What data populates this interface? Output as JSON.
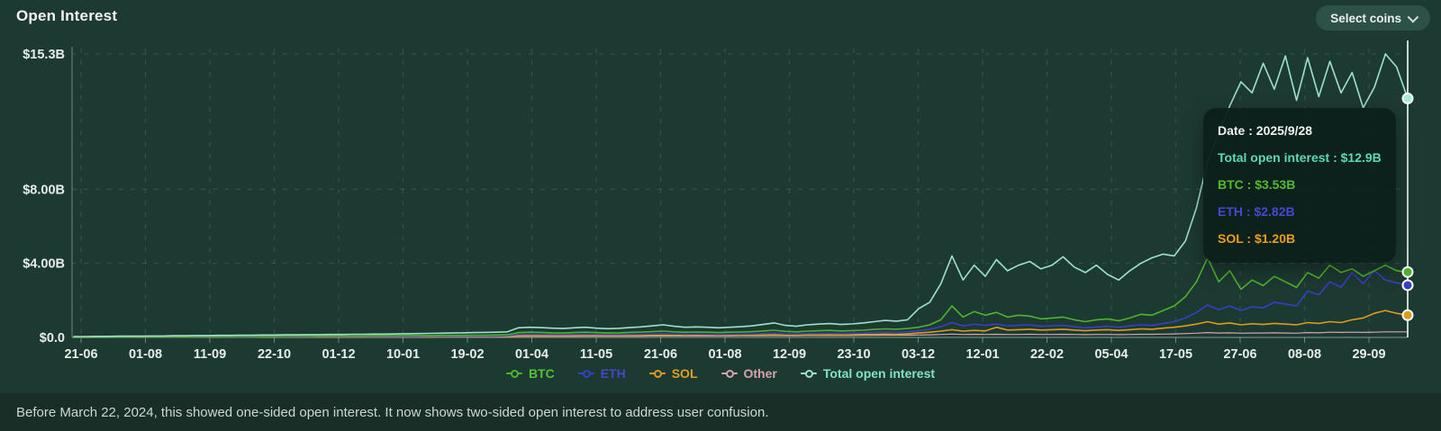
{
  "header": {
    "title": "Open Interest",
    "select_coins_label": "Select coins"
  },
  "tooltip": {
    "separator": " : ",
    "rows": [
      {
        "label": "Date",
        "value": "2025/9/28",
        "color": "#eef2ee"
      },
      {
        "label": "Total open interest",
        "value": "$12.9B",
        "color": "#5ed9b2"
      },
      {
        "label": "BTC",
        "value": "$3.53B",
        "color": "#54b92c"
      },
      {
        "label": "ETH",
        "value": "$2.82B",
        "color": "#4549cf"
      },
      {
        "label": "SOL",
        "value": "$1.20B",
        "color": "#e7a01b"
      }
    ]
  },
  "footer": {
    "note": "Before March 22, 2024, this showed one-sided open interest. It now shows two-sided open interest to address user confusion."
  },
  "chart_data": {
    "type": "line",
    "title": "Open Interest",
    "ylim": [
      0,
      15.3
    ],
    "legend_position": "bottom",
    "grid": "dashed",
    "grid_color": "rgba(160,195,180,0.16)",
    "axis_color": "rgba(190,212,202,0.5)",
    "tick_color": "#e6ede8",
    "crosshair_color": "#c9d5cf",
    "crosshair_date": "2025/9/28",
    "y_ticks": [
      {
        "label": "$15.3B",
        "value": 15.3
      },
      {
        "label": "$8.00B",
        "value": 8
      },
      {
        "label": "$4.00B",
        "value": 4
      },
      {
        "label": "$0.0",
        "value": 0
      }
    ],
    "x_tick_labels": [
      "21-06",
      "01-08",
      "11-09",
      "22-10",
      "01-12",
      "10-01",
      "19-02",
      "01-04",
      "11-05",
      "21-06",
      "01-08",
      "12-09",
      "23-10",
      "03-12",
      "12-01",
      "22-02",
      "05-04",
      "17-05",
      "27-06",
      "08-08",
      "29-09"
    ],
    "draw_order": [
      3,
      2,
      1,
      0,
      4
    ],
    "series": [
      {
        "name": "BTC",
        "color": "#4fb32b",
        "label_color": "#55c133",
        "width": 1.6,
        "end_dot": true,
        "values": [
          0.02,
          0.02,
          0.02,
          0.03,
          0.03,
          0.03,
          0.03,
          0.04,
          0.04,
          0.04,
          0.04,
          0.05,
          0.05,
          0.05,
          0.05,
          0.06,
          0.06,
          0.06,
          0.06,
          0.07,
          0.07,
          0.07,
          0.07,
          0.08,
          0.08,
          0.08,
          0.08,
          0.09,
          0.09,
          0.09,
          0.1,
          0.1,
          0.1,
          0.11,
          0.11,
          0.11,
          0.12,
          0.12,
          0.13,
          0.14,
          0.26,
          0.28,
          0.27,
          0.25,
          0.24,
          0.26,
          0.28,
          0.26,
          0.24,
          0.25,
          0.27,
          0.29,
          0.31,
          0.34,
          0.3,
          0.28,
          0.29,
          0.28,
          0.26,
          0.28,
          0.29,
          0.31,
          0.35,
          0.39,
          0.33,
          0.3,
          0.34,
          0.36,
          0.38,
          0.35,
          0.37,
          0.39,
          0.43,
          0.46,
          0.44,
          0.48,
          0.55,
          0.68,
          0.95,
          1.7,
          1.1,
          1.4,
          1.2,
          1.35,
          1.1,
          1.2,
          1.15,
          1.0,
          1.05,
          1.1,
          0.95,
          0.85,
          0.95,
          1.0,
          0.9,
          1.05,
          1.25,
          1.2,
          1.45,
          1.7,
          2.2,
          3.0,
          4.3,
          3.0,
          3.6,
          2.6,
          3.1,
          2.8,
          3.3,
          3.0,
          2.7,
          3.5,
          3.2,
          3.9,
          3.5,
          3.7,
          3.3,
          3.6,
          3.9,
          3.6,
          3.53
        ]
      },
      {
        "name": "ETH",
        "color": "#3a3ec2",
        "label_color": "#4347c8",
        "width": 1.6,
        "end_dot": true,
        "values": [
          0.01,
          0.01,
          0.01,
          0.01,
          0.01,
          0.01,
          0.02,
          0.02,
          0.02,
          0.02,
          0.02,
          0.02,
          0.03,
          0.03,
          0.03,
          0.03,
          0.03,
          0.04,
          0.04,
          0.04,
          0.04,
          0.04,
          0.05,
          0.05,
          0.05,
          0.05,
          0.05,
          0.06,
          0.06,
          0.06,
          0.06,
          0.06,
          0.07,
          0.07,
          0.07,
          0.07,
          0.08,
          0.08,
          0.08,
          0.09,
          0.17,
          0.18,
          0.17,
          0.16,
          0.16,
          0.17,
          0.18,
          0.17,
          0.16,
          0.16,
          0.17,
          0.18,
          0.19,
          0.21,
          0.19,
          0.18,
          0.18,
          0.17,
          0.16,
          0.17,
          0.18,
          0.19,
          0.21,
          0.24,
          0.2,
          0.19,
          0.21,
          0.22,
          0.23,
          0.22,
          0.23,
          0.25,
          0.28,
          0.3,
          0.28,
          0.31,
          0.36,
          0.44,
          0.58,
          0.8,
          0.62,
          0.72,
          0.65,
          0.72,
          0.62,
          0.66,
          0.68,
          0.6,
          0.63,
          0.65,
          0.58,
          0.52,
          0.56,
          0.6,
          0.55,
          0.62,
          0.68,
          0.65,
          0.75,
          0.85,
          1.05,
          1.35,
          1.75,
          1.5,
          1.7,
          1.45,
          1.65,
          1.6,
          1.9,
          1.8,
          1.7,
          2.5,
          2.3,
          3.0,
          2.7,
          3.5,
          2.9,
          3.6,
          3.1,
          2.95,
          2.82
        ]
      },
      {
        "name": "SOL",
        "color": "#dc9a1e",
        "label_color": "#e2a01f",
        "width": 1.6,
        "end_dot": true,
        "values": [
          0.0,
          0.0,
          0.0,
          0.0,
          0.01,
          0.01,
          0.01,
          0.01,
          0.01,
          0.01,
          0.01,
          0.01,
          0.01,
          0.01,
          0.02,
          0.02,
          0.02,
          0.02,
          0.02,
          0.02,
          0.02,
          0.02,
          0.03,
          0.03,
          0.03,
          0.03,
          0.03,
          0.03,
          0.04,
          0.04,
          0.04,
          0.04,
          0.04,
          0.04,
          0.05,
          0.05,
          0.05,
          0.05,
          0.05,
          0.06,
          0.09,
          0.1,
          0.1,
          0.09,
          0.09,
          0.1,
          0.1,
          0.1,
          0.09,
          0.1,
          0.1,
          0.1,
          0.11,
          0.12,
          0.11,
          0.1,
          0.11,
          0.11,
          0.1,
          0.11,
          0.11,
          0.12,
          0.13,
          0.14,
          0.12,
          0.12,
          0.13,
          0.13,
          0.14,
          0.13,
          0.14,
          0.16,
          0.17,
          0.18,
          0.17,
          0.2,
          0.24,
          0.28,
          0.34,
          0.42,
          0.34,
          0.38,
          0.35,
          0.55,
          0.4,
          0.42,
          0.44,
          0.4,
          0.42,
          0.44,
          0.4,
          0.36,
          0.4,
          0.42,
          0.38,
          0.42,
          0.46,
          0.44,
          0.5,
          0.55,
          0.62,
          0.72,
          0.85,
          0.72,
          0.78,
          0.68,
          0.74,
          0.7,
          0.76,
          0.72,
          0.68,
          0.8,
          0.76,
          0.85,
          0.8,
          0.95,
          1.05,
          1.3,
          1.45,
          1.3,
          1.2
        ]
      },
      {
        "name": "Other",
        "color": "#d7a3ad",
        "label_color": "#d7a3ad",
        "width": 1.2,
        "end_dot": false,
        "values": [
          0.01,
          0.01,
          0.01,
          0.01,
          0.01,
          0.01,
          0.01,
          0.01,
          0.01,
          0.01,
          0.01,
          0.01,
          0.01,
          0.01,
          0.01,
          0.01,
          0.01,
          0.01,
          0.02,
          0.02,
          0.02,
          0.02,
          0.02,
          0.02,
          0.02,
          0.02,
          0.02,
          0.02,
          0.02,
          0.02,
          0.02,
          0.02,
          0.02,
          0.03,
          0.03,
          0.03,
          0.03,
          0.03,
          0.03,
          0.03,
          0.06,
          0.06,
          0.06,
          0.06,
          0.06,
          0.06,
          0.07,
          0.07,
          0.07,
          0.07,
          0.07,
          0.07,
          0.08,
          0.08,
          0.08,
          0.08,
          0.08,
          0.08,
          0.08,
          0.08,
          0.09,
          0.09,
          0.09,
          0.1,
          0.09,
          0.09,
          0.1,
          0.1,
          0.1,
          0.1,
          0.1,
          0.11,
          0.11,
          0.12,
          0.12,
          0.12,
          0.13,
          0.14,
          0.16,
          0.18,
          0.16,
          0.17,
          0.16,
          0.17,
          0.16,
          0.16,
          0.17,
          0.16,
          0.16,
          0.17,
          0.16,
          0.15,
          0.16,
          0.16,
          0.15,
          0.16,
          0.17,
          0.17,
          0.18,
          0.19,
          0.21,
          0.23,
          0.26,
          0.24,
          0.25,
          0.23,
          0.24,
          0.24,
          0.25,
          0.24,
          0.23,
          0.26,
          0.25,
          0.28,
          0.27,
          0.28,
          0.27,
          0.28,
          0.3,
          0.3,
          0.3
        ]
      },
      {
        "name": "Total open interest",
        "color": "#9fe0cb",
        "label_color": "#82e2c6",
        "width": 1.6,
        "end_dot": true,
        "dot_color": "#a6ebd6",
        "values": [
          0.05,
          0.05,
          0.06,
          0.06,
          0.07,
          0.07,
          0.07,
          0.08,
          0.08,
          0.09,
          0.09,
          0.1,
          0.1,
          0.11,
          0.11,
          0.12,
          0.12,
          0.13,
          0.13,
          0.14,
          0.14,
          0.15,
          0.15,
          0.16,
          0.16,
          0.17,
          0.17,
          0.18,
          0.18,
          0.19,
          0.2,
          0.21,
          0.22,
          0.23,
          0.24,
          0.25,
          0.26,
          0.27,
          0.28,
          0.3,
          0.52,
          0.55,
          0.53,
          0.5,
          0.48,
          0.52,
          0.55,
          0.5,
          0.47,
          0.49,
          0.53,
          0.57,
          0.62,
          0.68,
          0.6,
          0.55,
          0.57,
          0.55,
          0.52,
          0.55,
          0.58,
          0.62,
          0.7,
          0.78,
          0.65,
          0.6,
          0.68,
          0.72,
          0.75,
          0.7,
          0.73,
          0.78,
          0.85,
          0.92,
          0.88,
          0.95,
          1.55,
          1.9,
          2.9,
          4.4,
          3.1,
          3.9,
          3.3,
          4.2,
          3.6,
          3.9,
          4.1,
          3.7,
          3.9,
          4.35,
          3.8,
          3.5,
          3.9,
          3.4,
          3.1,
          3.6,
          4.0,
          4.3,
          4.5,
          4.4,
          5.2,
          7.0,
          9.5,
          11.0,
          12.5,
          13.8,
          13.2,
          14.8,
          13.4,
          15.2,
          12.8,
          15.1,
          13.0,
          14.9,
          13.2,
          14.3,
          12.4,
          13.5,
          15.3,
          14.6,
          12.9
        ]
      }
    ]
  }
}
